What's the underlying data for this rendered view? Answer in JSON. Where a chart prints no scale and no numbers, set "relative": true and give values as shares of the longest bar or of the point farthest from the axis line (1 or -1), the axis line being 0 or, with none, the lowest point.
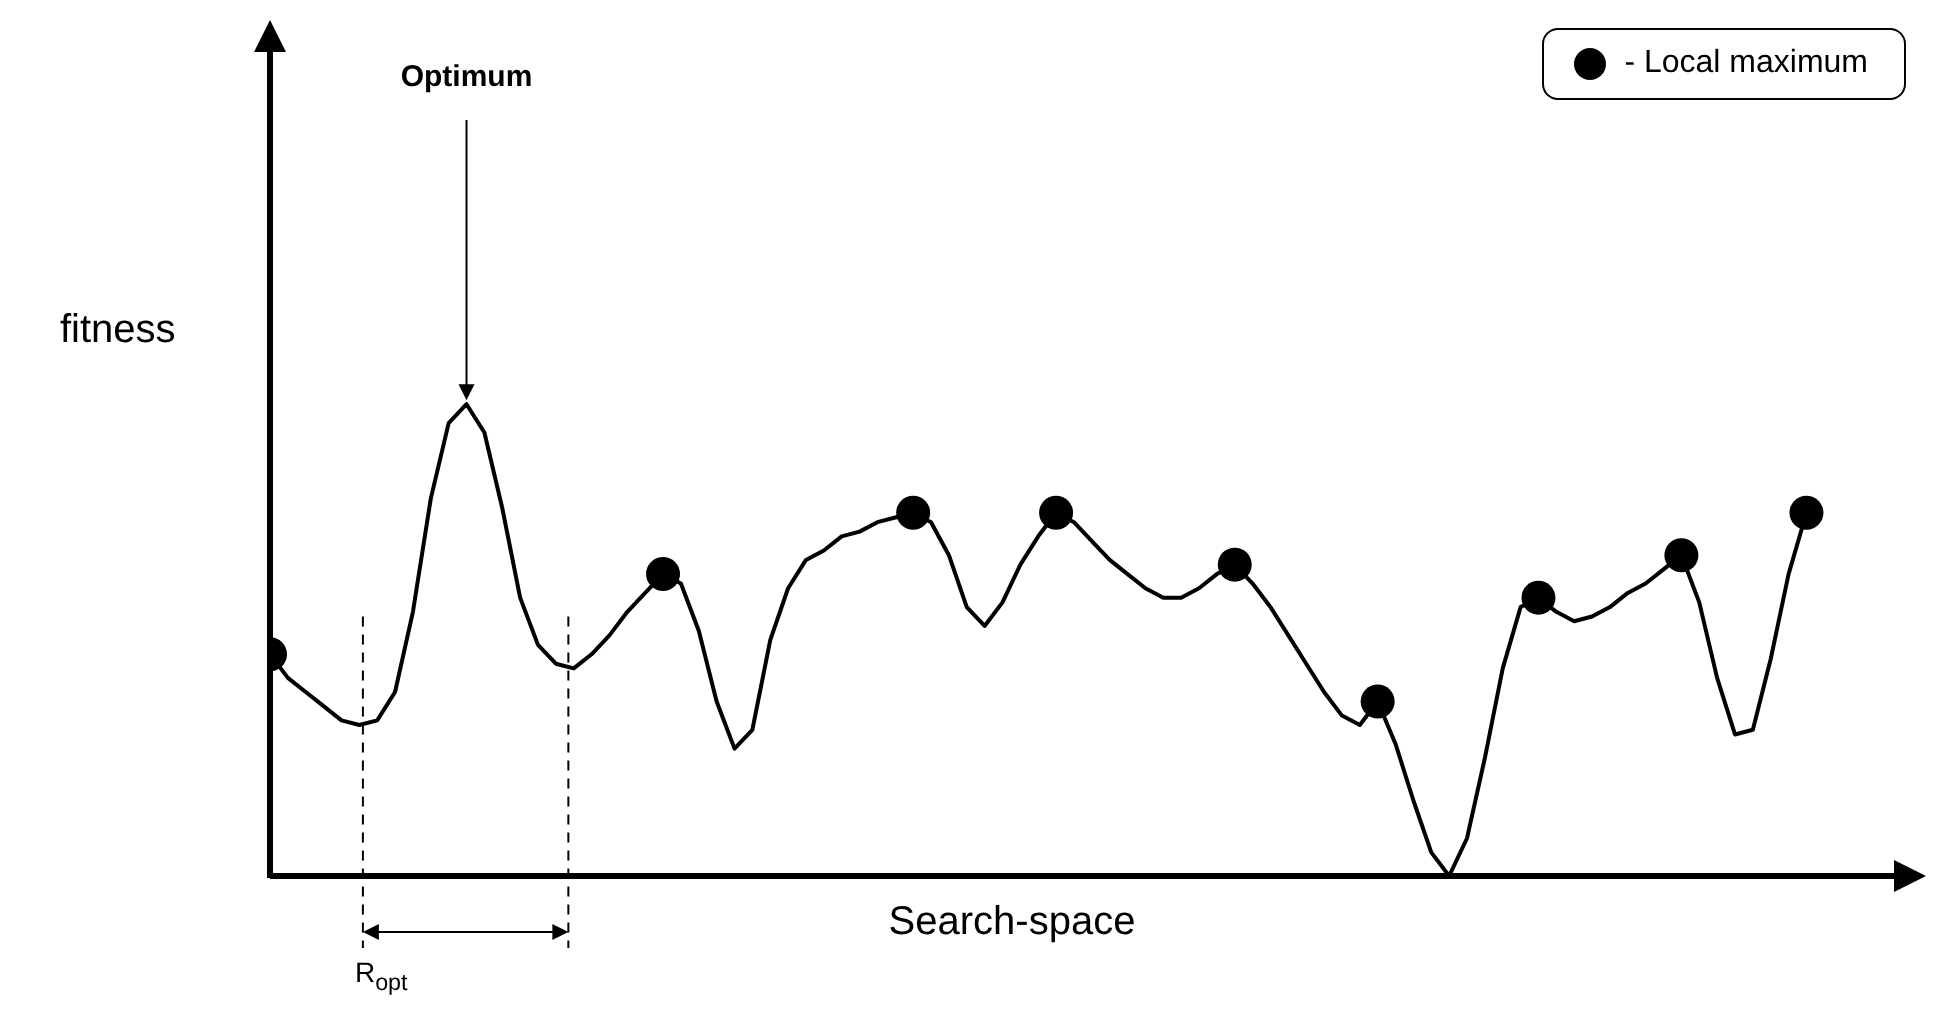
{
  "chart_data": {
    "type": "line",
    "relative": true,
    "xlabel": "Search-space",
    "ylabel": "fitness",
    "categories": [
      null,
      null,
      null,
      null,
      null,
      null,
      null,
      null,
      null,
      null,
      null,
      null,
      null,
      null,
      null,
      null,
      null,
      null,
      null,
      null,
      null,
      null,
      null,
      null,
      null,
      null,
      null,
      null,
      null,
      null,
      null,
      null,
      null,
      null,
      null,
      null,
      null,
      null,
      null,
      null,
      null,
      null,
      null,
      null,
      null,
      null,
      null,
      null,
      null,
      null,
      null,
      null,
      null,
      null,
      null,
      null,
      null,
      null,
      null,
      null,
      null,
      null,
      null,
      null,
      null,
      null,
      null,
      null,
      null,
      null,
      null,
      null,
      null,
      null,
      null,
      null,
      null,
      null,
      null,
      null,
      null,
      null,
      null,
      null,
      null,
      null,
      null
    ],
    "series": [
      {
        "color": "#000000",
        "marker": "none",
        "values": [
          0.47,
          0.42,
          0.39,
          0.36,
          0.33,
          0.32,
          0.33,
          0.39,
          0.56,
          0.8,
          0.96,
          1,
          0.94,
          0.78,
          0.59,
          0.49,
          0.45,
          0.44,
          0.47,
          0.51,
          0.56,
          0.6,
          0.64,
          0.62,
          0.52,
          0.37,
          0.27,
          0.31,
          0.5,
          0.61,
          0.67,
          0.69,
          0.72,
          0.73,
          0.75,
          0.76,
          0.77,
          0.75,
          0.68,
          0.57,
          0.53,
          0.58,
          0.66,
          0.72,
          0.77,
          0.75,
          0.71,
          0.67,
          0.64,
          0.61,
          0.59,
          0.59,
          0.61,
          0.64,
          0.66,
          0.62,
          0.57,
          0.51,
          0.45,
          0.39,
          0.34,
          0.32,
          0.37,
          0.28,
          0.16,
          0.05,
          0,
          0.08,
          0.25,
          0.44,
          0.57,
          0.59,
          0.56,
          0.54,
          0.55,
          0.57,
          0.6,
          0.62,
          0.65,
          0.68,
          0.58,
          0.42,
          0.3,
          0.31,
          0.46,
          0.64,
          0.77
        ]
      },
      {
        "name": "- Local maximum",
        "color": "#000000",
        "marker": "circle",
        "values": [
          0.47,
          null,
          null,
          null,
          null,
          null,
          null,
          null,
          null,
          null,
          null,
          null,
          null,
          null,
          null,
          null,
          null,
          null,
          null,
          null,
          null,
          null,
          0.64,
          null,
          null,
          null,
          null,
          null,
          null,
          null,
          null,
          null,
          null,
          null,
          null,
          null,
          0.77,
          null,
          null,
          null,
          null,
          null,
          null,
          null,
          0.77,
          null,
          null,
          null,
          null,
          null,
          null,
          null,
          null,
          null,
          0.66,
          null,
          null,
          null,
          null,
          null,
          null,
          null,
          0.37,
          null,
          null,
          null,
          null,
          null,
          null,
          null,
          null,
          0.59,
          null,
          null,
          null,
          null,
          null,
          null,
          null,
          0.68,
          null,
          null,
          null,
          null,
          null,
          null,
          0.77
        ]
      }
    ],
    "legend": "top right",
    "grid": false,
    "tick_labels": false,
    "annotations": [
      "Optimum",
      "R$_{opt}$"
    ]
  }
}
